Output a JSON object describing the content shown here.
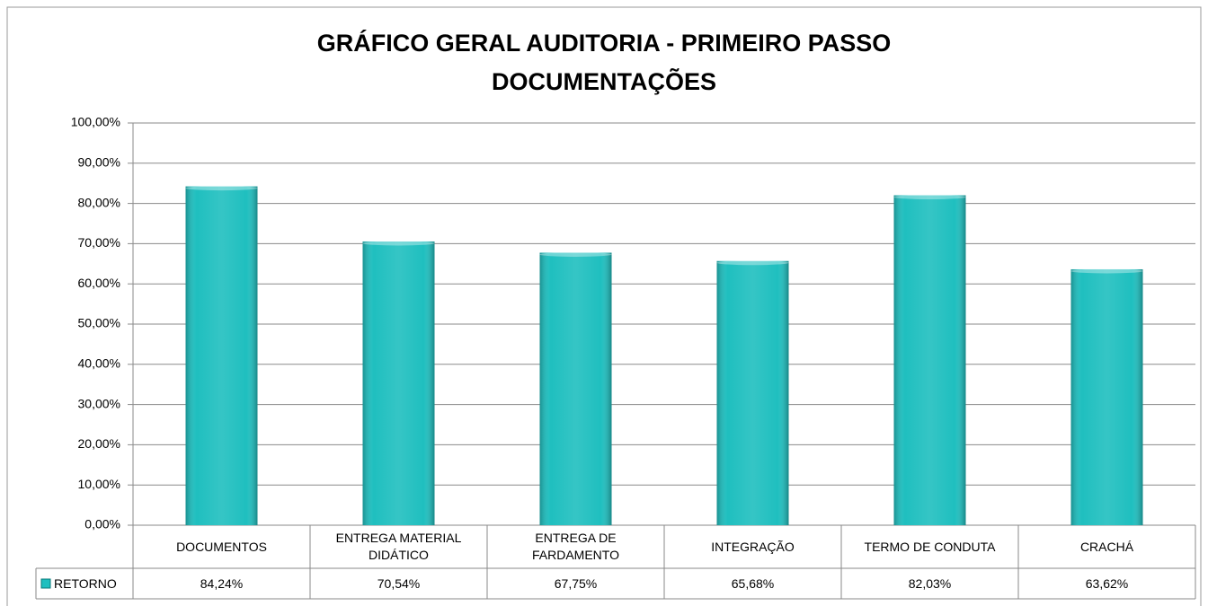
{
  "chart_data": {
    "type": "bar",
    "title": "GRÁFICO GERAL AUDITORIA - PRIMEIRO PASSO",
    "subtitle": "DOCUMENTAÇÕES",
    "categories": [
      "DOCUMENTOS",
      "ENTREGA MATERIAL DIDÁTICO",
      "ENTREGA DE FARDAMENTO",
      "INTEGRAÇÃO",
      "TERMO DE CONDUTA",
      "CRACHÁ"
    ],
    "series": [
      {
        "name": "RETORNO",
        "color": "#1fbfbf",
        "values": [
          84.24,
          70.54,
          67.75,
          65.68,
          82.03,
          63.62
        ],
        "value_labels": [
          "84,24%",
          "70,54%",
          "67,75%",
          "65,68%",
          "82,03%",
          "63,62%"
        ]
      }
    ],
    "ylim": [
      0,
      100
    ],
    "yticks": [
      {
        "value": 0,
        "label": "0,00%"
      },
      {
        "value": 10,
        "label": "10,00%"
      },
      {
        "value": 20,
        "label": "20,00%"
      },
      {
        "value": 30,
        "label": "30,00%"
      },
      {
        "value": 40,
        "label": "40,00%"
      },
      {
        "value": 50,
        "label": "50,00%"
      },
      {
        "value": 60,
        "label": "60,00%"
      },
      {
        "value": 70,
        "label": "70,00%"
      },
      {
        "value": 80,
        "label": "80,00%"
      },
      {
        "value": 90,
        "label": "90,00%"
      },
      {
        "value": 100,
        "label": "100,00%"
      }
    ],
    "grid": true,
    "data_table": true
  }
}
